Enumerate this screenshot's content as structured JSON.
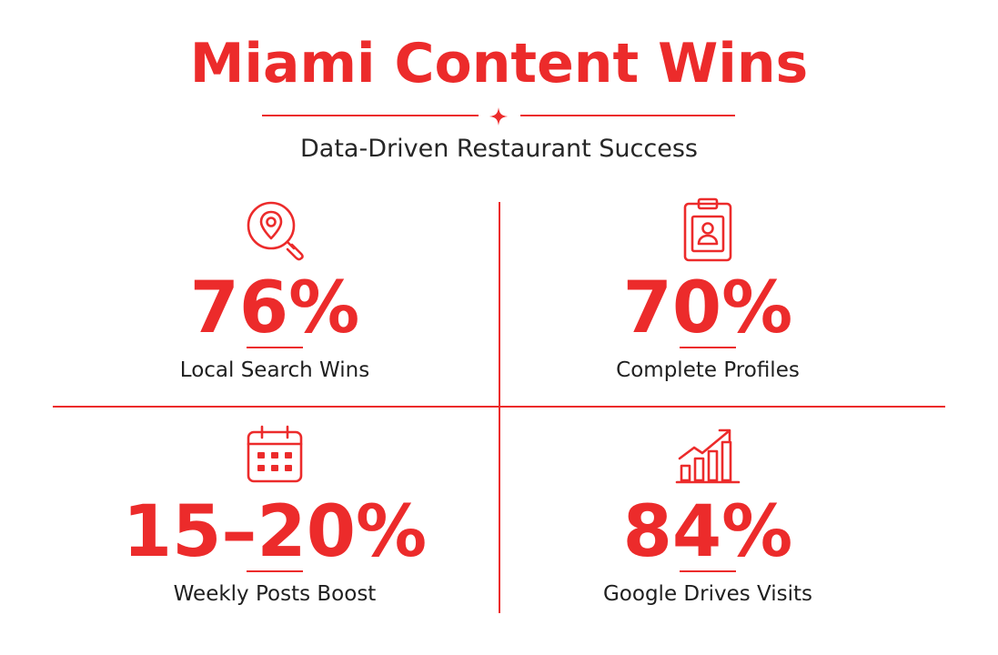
{
  "header": {
    "title": "Miami Content Wins",
    "subtitle": "Data-Driven Restaurant Success",
    "divider_icon": "sparkle-icon"
  },
  "accent_color": "#ec2b2b",
  "stats": [
    {
      "value": "76%",
      "label": "Local Search Wins",
      "icon": "location-search-icon",
      "quadrant": "top-left"
    },
    {
      "value": "70%",
      "label": "Complete Profiles",
      "icon": "profile-clipboard-icon",
      "quadrant": "top-right"
    },
    {
      "value": "15–20%",
      "label": "Weekly Posts Boost",
      "icon": "calendar-icon",
      "quadrant": "bottom-left"
    },
    {
      "value": "84%",
      "label": "Google Drives Visits",
      "icon": "growth-chart-icon",
      "quadrant": "bottom-right"
    }
  ]
}
